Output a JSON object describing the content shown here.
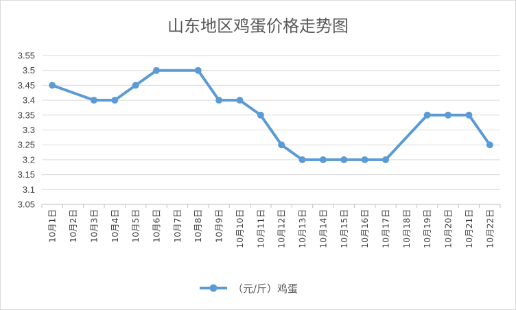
{
  "chart_data": {
    "type": "line",
    "title": "山东地区鸡蛋价格走势图",
    "categories": [
      "10月1日",
      "10月2日",
      "10月3日",
      "10月4日",
      "10月5日",
      "10月6日",
      "10月7日",
      "10月8日",
      "10月9日",
      "10月10日",
      "10月11日",
      "10月12日",
      "10月13日",
      "10月14日",
      "10月15日",
      "10月16日",
      "10月17日",
      "10月18日",
      "10月19日",
      "10月20日",
      "10月21日",
      "10月22日"
    ],
    "series": [
      {
        "name": "（元/斤）鸡蛋",
        "color": "#5b9bd5",
        "values": [
          3.45,
          null,
          3.4,
          3.4,
          3.45,
          3.5,
          null,
          3.5,
          3.4,
          3.4,
          3.35,
          3.25,
          3.2,
          3.2,
          3.2,
          3.2,
          3.2,
          null,
          3.35,
          3.35,
          3.35,
          3.25
        ]
      }
    ],
    "ylim": [
      3.05,
      3.55
    ],
    "yticks": [
      "3.05",
      "3.1",
      "3.15",
      "3.2",
      "3.25",
      "3.3",
      "3.35",
      "3.4",
      "3.45",
      "3.5",
      "3.55"
    ],
    "grid": true,
    "legend": "bottom",
    "xlabel": "",
    "ylabel": ""
  }
}
